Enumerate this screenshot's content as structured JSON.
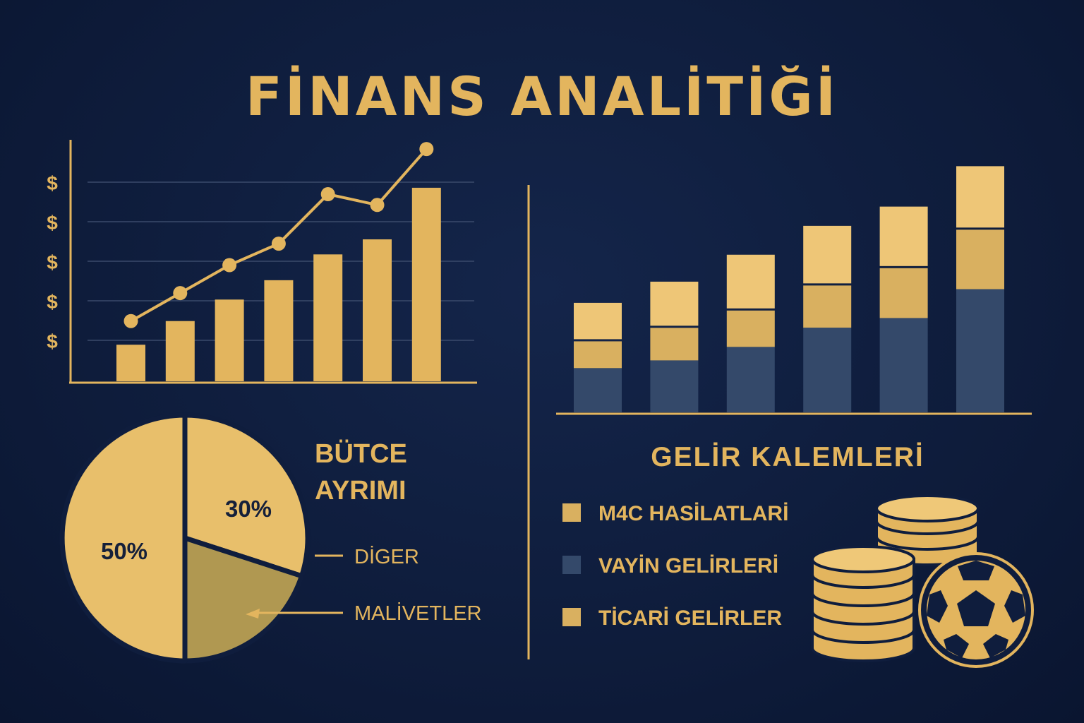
{
  "title": "FİNANS ANALİTİĞİ",
  "colors": {
    "background": "#0f1d3d",
    "gold": "#e3b55e",
    "gold_light": "#efc878",
    "gold_dark": "#b59a52",
    "navy_bar": "#34496a",
    "gridline": "#3a4a6b"
  },
  "chart_data": [
    {
      "type": "bar",
      "subtype": "bar-with-line",
      "y_tick_labels": [
        "$",
        "$",
        "$",
        "$",
        "$"
      ],
      "categories": [
        "",
        "",
        "",
        "",
        "",
        "",
        ""
      ],
      "ylim": [
        0,
        5.5
      ],
      "series": [
        {
          "kind": "bar",
          "values": [
            0.85,
            1.4,
            1.9,
            2.35,
            2.95,
            3.3,
            4.5
          ]
        },
        {
          "kind": "line",
          "values": [
            1.4,
            2.05,
            2.7,
            3.2,
            4.35,
            4.1,
            5.4
          ]
        }
      ],
      "grid": true
    },
    {
      "type": "bar",
      "subtype": "stacked",
      "categories": [
        "",
        "",
        "",
        "",
        "",
        ""
      ],
      "ylim": [
        0,
        6.2
      ],
      "series": [
        {
          "name": "VAYİN GELİRLERİ",
          "color": "#34496a",
          "values": [
            1.15,
            1.35,
            1.7,
            2.2,
            2.45,
            3.2
          ]
        },
        {
          "name": "TİCARİ GELİRLER",
          "color": "#d9b060",
          "values": [
            0.75,
            0.9,
            1.0,
            1.15,
            1.35,
            1.6
          ]
        },
        {
          "name": "M4C HASİLATLARİ",
          "color": "#eec677",
          "values": [
            1.0,
            1.2,
            1.45,
            1.55,
            1.6,
            1.65
          ]
        }
      ]
    },
    {
      "type": "pie",
      "title": "BÜTCE AYRIMI",
      "slices": [
        {
          "label": "50%",
          "value": 50,
          "color": "#e8bf6b"
        },
        {
          "label": "30%",
          "value": 30,
          "color": "#e8bf6b"
        },
        {
          "label": "MALİVETLER",
          "value": 20,
          "color": "#b09851"
        }
      ],
      "callouts": [
        "DİGER",
        "MALİVETLER"
      ]
    }
  ],
  "legend": {
    "title": "GELİR KALEMLERİ",
    "items": [
      {
        "label": "M4C HASİLATLARİ",
        "color": "#d9b060"
      },
      {
        "label": "VAYİN GELİRLERİ",
        "color": "#34496a"
      },
      {
        "label": "TİCARİ GELİRLER",
        "color": "#d9b060"
      }
    ]
  },
  "icons": [
    "coin-stack-icon",
    "soccer-ball-icon"
  ]
}
